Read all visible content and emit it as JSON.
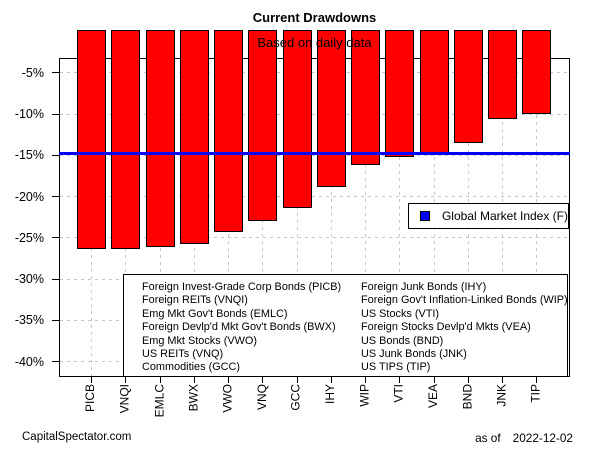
{
  "title": "Current Drawdowns",
  "subtitle": "Based on daily data",
  "chart_data": {
    "type": "bar",
    "categories": [
      "PICB",
      "VNQI",
      "EMLC",
      "BWX",
      "VWO",
      "VNQ",
      "GCC",
      "IHY",
      "WIP",
      "VTI",
      "VEA",
      "BND",
      "JNK",
      "TIP"
    ],
    "values": [
      -26.2,
      -26.2,
      -26.0,
      -25.6,
      -24.2,
      -22.8,
      -21.3,
      -18.7,
      -16.0,
      -15.1,
      -14.9,
      -13.4,
      -10.5,
      -9.9
    ],
    "bar_color": "#ff0000",
    "bar_border_color": "#000000",
    "y_axis": {
      "tick_labels": [
        "-5%",
        "-10%",
        "-15%",
        "-20%",
        "-25%",
        "-30%",
        "-35%",
        "-40%"
      ],
      "tick_values": [
        -5,
        -10,
        -15,
        -20,
        -25,
        -30,
        -35,
        -40
      ],
      "range": [
        0,
        -42
      ],
      "unit": "percent"
    },
    "grid": {
      "show": true,
      "style": "dotted",
      "color": "#c6c6c6"
    },
    "reference_line": {
      "label": "Global Market Index (F)",
      "value": -14.8,
      "color": "#0000ff"
    },
    "legend_position": "middle-right"
  },
  "asset_legend": {
    "left_column": [
      "Foreign Invest-Grade Corp Bonds (PICB)",
      "Foreign REITs (VNQI)",
      "Emg Mkt Gov't Bonds (EMLC)",
      "Foreign Devlp'd Mkt Gov't Bonds (BWX)",
      "Emg Mkt Stocks (VWO)",
      "US REITs (VNQ)",
      "Commodities (GCC)"
    ],
    "right_column": [
      "Foreign Junk Bonds (IHY)",
      "Foreign Gov't Inflation-Linked Bonds (WIP)",
      "US Stocks (VTI)",
      "Foreign Stocks Devlp'd Mkts (VEA)",
      "US Bonds (BND)",
      "US Junk Bonds (JNK)",
      "US TIPS (TIP)"
    ]
  },
  "footer": {
    "source": "CapitalSpectator.com",
    "as_of_label": "as of",
    "as_of_date": "2022-12-02"
  }
}
